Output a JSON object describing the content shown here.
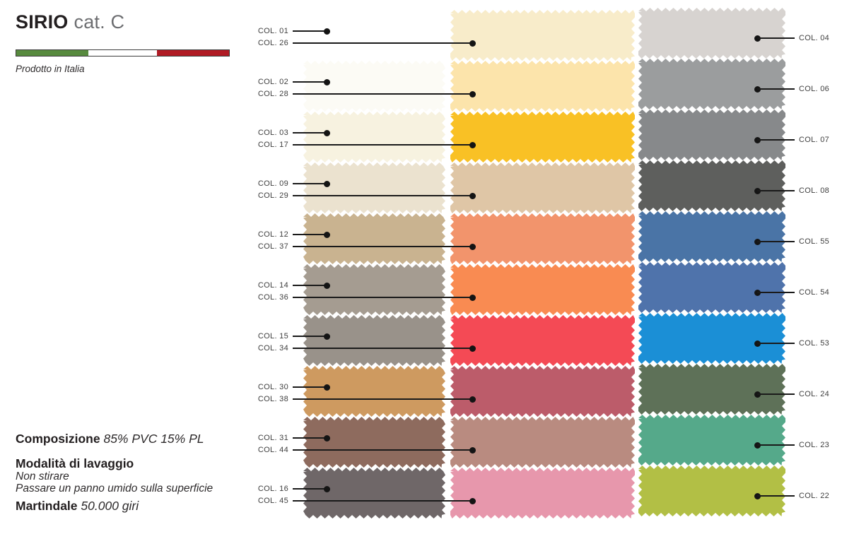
{
  "header": {
    "brand": "SIRIO",
    "category": "cat. C",
    "origin": "Prodotto in Italia",
    "flag_colors": {
      "green": "#578a3e",
      "white": "#ffffff",
      "red": "#b01b24"
    }
  },
  "footer": {
    "composition_label": "Composizione",
    "composition_value": "85% PVC 15% PL",
    "washing_title": "Modalità di lavaggio",
    "washing_notes": [
      "Non stirare",
      "Passare un panno umido sulla superficie"
    ],
    "martindale_label": "Martindale",
    "martindale_value": "50.000 giri"
  },
  "swatch_rows": [
    {
      "left": {
        "code": "COL. 01",
        "color": "#ffffff"
      },
      "middle": {
        "code": "COL. 26",
        "color": "#f8ecca"
      },
      "right": {
        "code": "COL. 04",
        "color": "#d7d3d0"
      }
    },
    {
      "left": {
        "code": "COL. 02",
        "color": "#fcfbf5"
      },
      "middle": {
        "code": "COL. 28",
        "color": "#fce4ab"
      },
      "right": {
        "code": "COL. 06",
        "color": "#9b9d9e"
      }
    },
    {
      "left": {
        "code": "COL. 03",
        "color": "#f7f2e0"
      },
      "middle": {
        "code": "COL. 17",
        "color": "#f9c125"
      },
      "right": {
        "code": "COL. 07",
        "color": "#87898b"
      }
    },
    {
      "left": {
        "code": "COL. 09",
        "color": "#ebe2cf"
      },
      "middle": {
        "code": "COL. 29",
        "color": "#dfc6a6"
      },
      "right": {
        "code": "COL. 08",
        "color": "#5e5f5d"
      }
    },
    {
      "left": {
        "code": "COL. 12",
        "color": "#c9b390"
      },
      "middle": {
        "code": "COL. 37",
        "color": "#f2946c"
      },
      "right": {
        "code": "COL. 55",
        "color": "#4a74a6"
      }
    },
    {
      "left": {
        "code": "COL. 14",
        "color": "#a59c91"
      },
      "middle": {
        "code": "COL. 36",
        "color": "#f98b52"
      },
      "right": {
        "code": "COL. 54",
        "color": "#4f73ab"
      }
    },
    {
      "left": {
        "code": "COL. 15",
        "color": "#99928a"
      },
      "middle": {
        "code": "COL. 34",
        "color": "#f44a55"
      },
      "right": {
        "code": "COL. 53",
        "color": "#1b8fd6"
      }
    },
    {
      "left": {
        "code": "COL. 30",
        "color": "#ce9a60"
      },
      "middle": {
        "code": "COL. 38",
        "color": "#bc5c6a"
      },
      "right": {
        "code": "COL. 24",
        "color": "#5e7158"
      }
    },
    {
      "left": {
        "code": "COL. 31",
        "color": "#8e6b5e"
      },
      "middle": {
        "code": "COL. 44",
        "color": "#b98b80"
      },
      "right": {
        "code": "COL. 23",
        "color": "#55a98a"
      }
    },
    {
      "left": {
        "code": "COL. 16",
        "color": "#6f6768"
      },
      "middle": {
        "code": "COL. 45",
        "color": "#e797ac"
      },
      "right": {
        "code": "COL. 22",
        "color": "#b2bf45"
      }
    }
  ]
}
